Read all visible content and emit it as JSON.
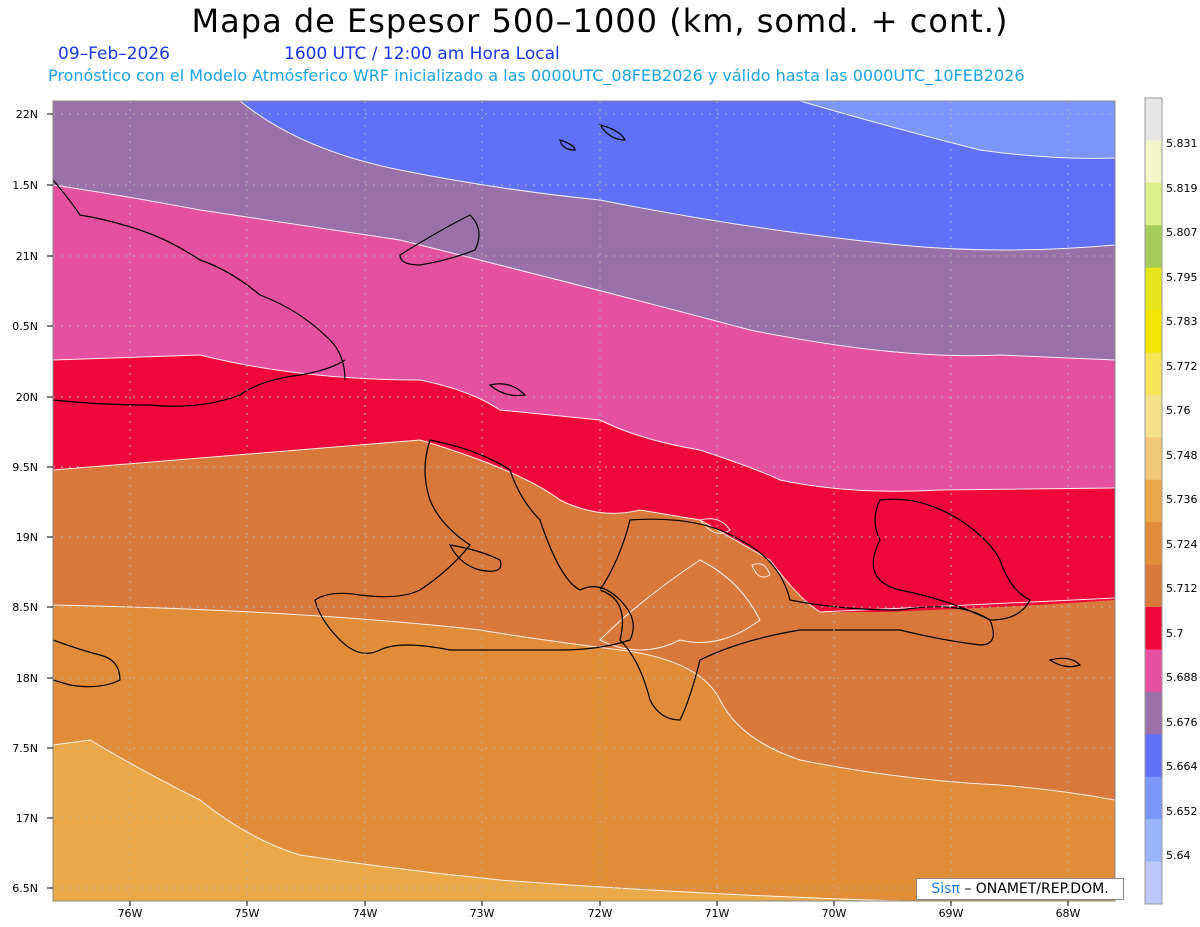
{
  "header": {
    "title": "Mapa de Espesor 500–1000 (km, somd. + cont.)",
    "date": "09–Feb–2026",
    "time": "1600 UTC / 12:00 am Hora Local",
    "forecast": "Pronóstico con el Modelo Atmósferico WRF inicializado a las 0000UTC_08FEB2026 y válido hasta las  0000UTC_10FEB2026"
  },
  "axes": {
    "lat_labels": [
      "22N",
      "1.5N",
      "21N",
      "0.5N",
      "20N",
      "9.5N",
      "19N",
      "8.5N",
      "18N",
      "7.5N",
      "17N",
      "6.5N"
    ],
    "lon_labels": [
      "76W",
      "75W",
      "74W",
      "73W",
      "72W",
      "71W",
      "70W",
      "69W",
      "68W"
    ]
  },
  "colorbar": {
    "labels": [
      "5.831",
      "5.819",
      "5.807",
      "5.795",
      "5.783",
      "5.772",
      "5.76",
      "5.748",
      "5.736",
      "5.724",
      "5.712",
      "5.7",
      "5.688",
      "5.676",
      "5.664",
      "5.652",
      "5.64"
    ],
    "colors": [
      "#e6e6e6",
      "#f1f5c8",
      "#dcf08c",
      "#a6cc5a",
      "#e6e61a",
      "#f5e600",
      "#f7e65a",
      "#f5e08c",
      "#f0c878",
      "#eaa848",
      "#e08c38",
      "#d8783a",
      "#f0083a",
      "#e650a0",
      "#9a70a8",
      "#6070f8",
      "#7a96fc",
      "#9ab4fc",
      "#bcc8fc"
    ]
  },
  "credit": {
    "sis": "Sisπ",
    "org": "– ONAMET/REP.DOM."
  }
}
